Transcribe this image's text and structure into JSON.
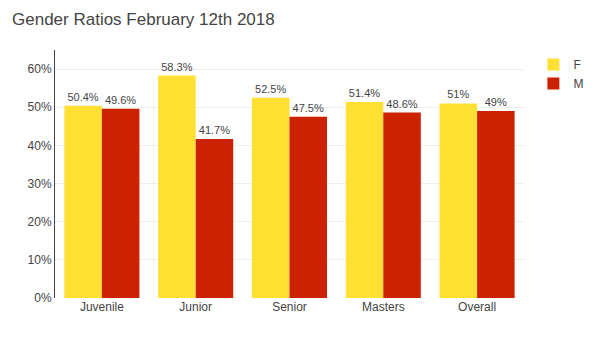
{
  "chart_data": {
    "type": "bar",
    "title": "Gender Ratios February 12th 2018",
    "categories": [
      "Juvenile",
      "Junior",
      "Senior",
      "Masters",
      "Overall"
    ],
    "series": [
      {
        "name": "F",
        "color": "#FFE033",
        "values": [
          50.4,
          58.3,
          52.5,
          51.4,
          51.0
        ],
        "value_labels": [
          "50.4%",
          "58.3%",
          "52.5%",
          "51.4%",
          "51%"
        ]
      },
      {
        "name": "M",
        "color": "#CC2200",
        "values": [
          49.6,
          41.7,
          47.5,
          48.6,
          49.0
        ],
        "value_labels": [
          "49.6%",
          "41.7%",
          "47.5%",
          "48.6%",
          "49%"
        ]
      }
    ],
    "ylim": [
      0,
      65
    ],
    "yticks": [
      {
        "value": 0,
        "label": "0%"
      },
      {
        "value": 10,
        "label": "10%"
      },
      {
        "value": 20,
        "label": "20%"
      },
      {
        "value": 30,
        "label": "30%"
      },
      {
        "value": 40,
        "label": "40%"
      },
      {
        "value": 50,
        "label": "50%"
      },
      {
        "value": 60,
        "label": "60%"
      }
    ],
    "grid": true,
    "legend": "upper right",
    "data_labels": true
  }
}
